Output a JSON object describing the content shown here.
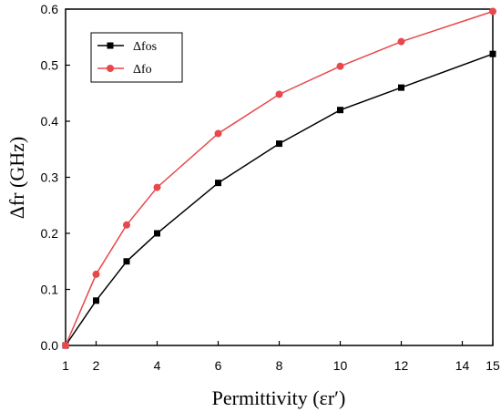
{
  "chart_data": {
    "type": "line",
    "xlabel": "Permittivity (εr′)",
    "ylabel": "Δfr (GHz)",
    "xlim": [
      1,
      15
    ],
    "ylim": [
      0,
      0.6
    ],
    "xticks": [
      1,
      2,
      4,
      6,
      8,
      10,
      12,
      14,
      15
    ],
    "yticks": [
      0.0,
      0.1,
      0.2,
      0.3,
      0.4,
      0.5,
      0.6
    ],
    "ytick_labels": [
      "0.0",
      "0.1",
      "0.2",
      "0.3",
      "0.4",
      "0.5",
      "0.6"
    ],
    "grid": false,
    "legend_position": "top-left",
    "series": [
      {
        "name": "Δfos",
        "color": "#000000",
        "marker": "square",
        "x": [
          1,
          2,
          3,
          4,
          6,
          8,
          10,
          12,
          15
        ],
        "y": [
          0.0,
          0.08,
          0.15,
          0.2,
          0.29,
          0.36,
          0.42,
          0.46,
          0.52
        ]
      },
      {
        "name": "Δfo",
        "color": "#e8474c",
        "marker": "circle",
        "x": [
          1,
          2,
          3,
          4,
          6,
          8,
          10,
          12,
          15
        ],
        "y": [
          0.0,
          0.127,
          0.215,
          0.282,
          0.378,
          0.448,
          0.498,
          0.542,
          0.596
        ]
      }
    ]
  }
}
